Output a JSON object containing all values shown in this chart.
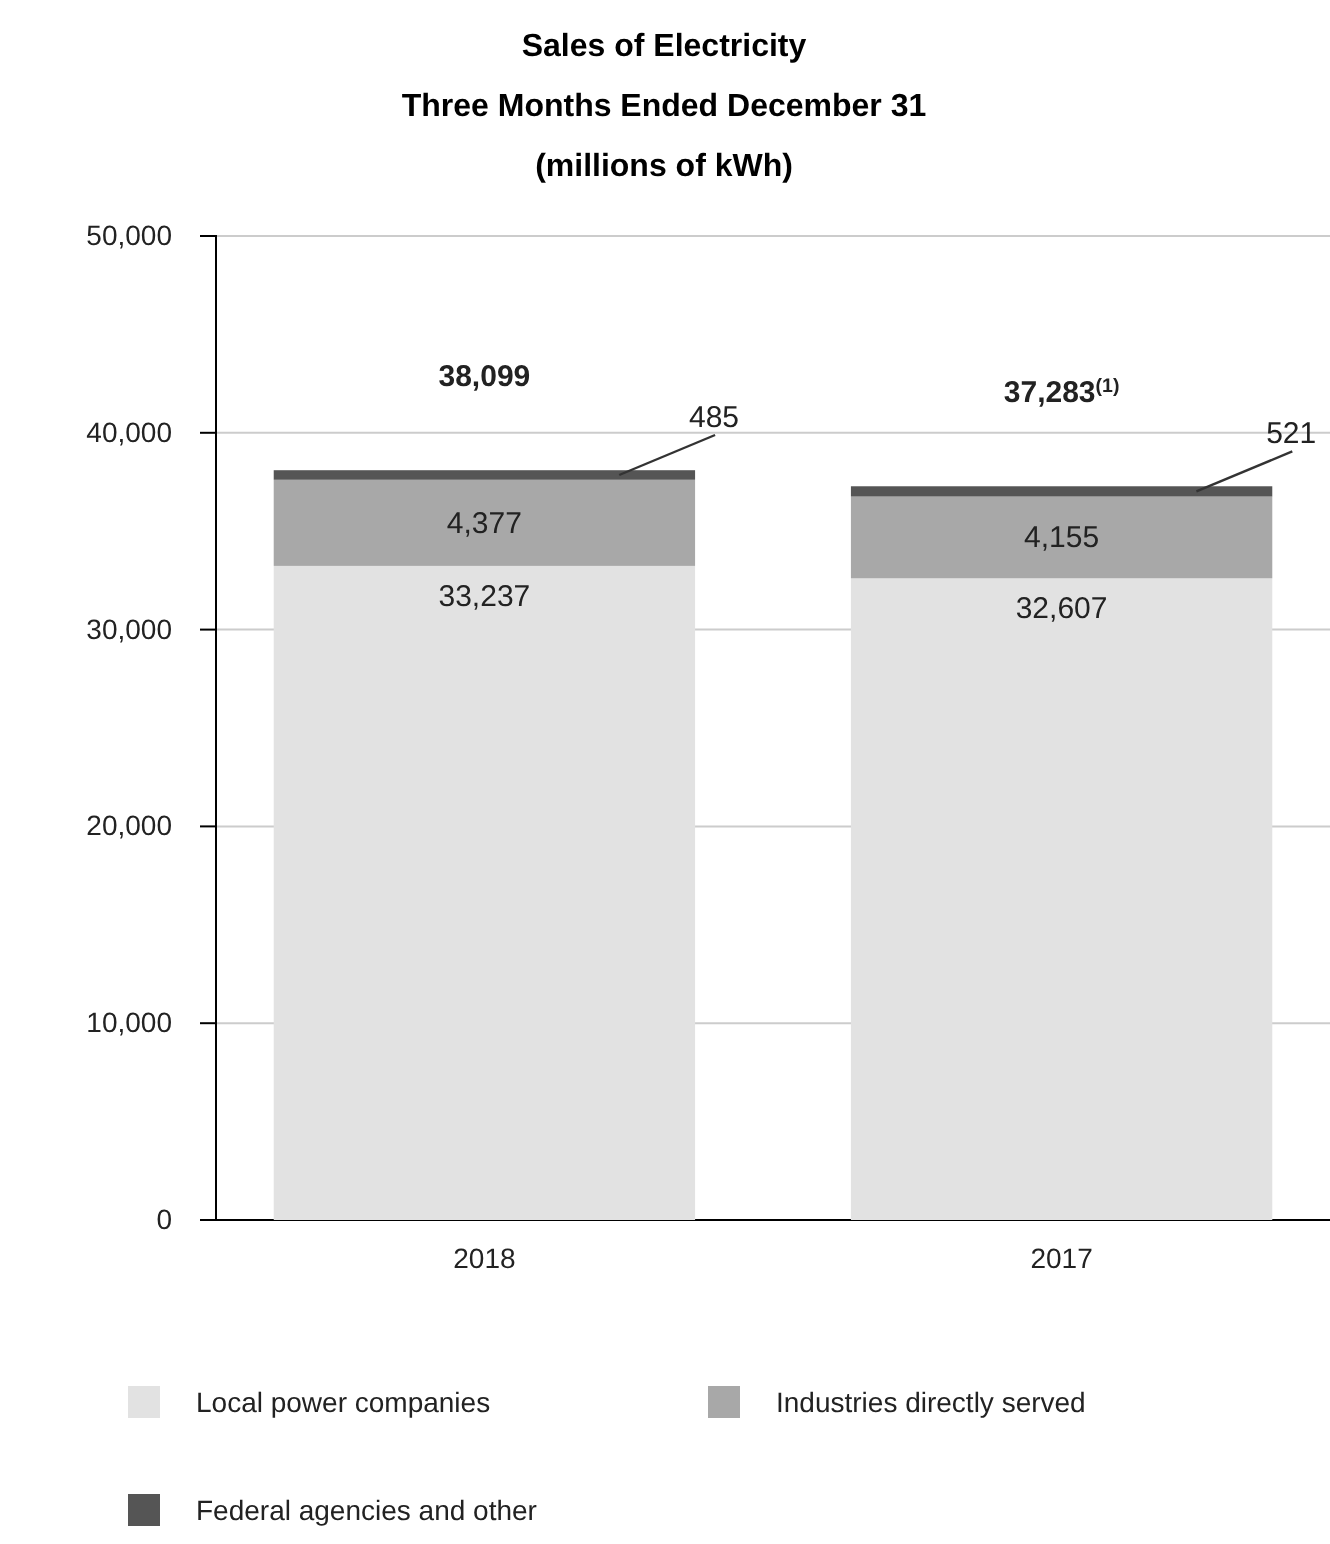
{
  "chart_data": {
    "type": "bar",
    "title": "Sales of Electricity",
    "subtitle": "Three Months Ended December 31\n(millions of kWh)",
    "categories": [
      "2018",
      "2017"
    ],
    "stacked": true,
    "series": [
      {
        "name": "Local power companies",
        "color": "#e2e2e2",
        "values": [
          33237,
          32607
        ],
        "value_labels": [
          "33,237",
          "32,607"
        ]
      },
      {
        "name": "Industries directly served",
        "color": "#a8a8a8",
        "values": [
          4377,
          4155
        ],
        "value_labels": [
          "4,377",
          "4,155"
        ]
      },
      {
        "name": "Federal agencies and other",
        "color": "#555555",
        "values": [
          485,
          521
        ],
        "value_labels": [
          "485",
          "521"
        ]
      }
    ],
    "totals": [
      "38,099",
      "37,283$^{(1)}$"
    ],
    "ylim": [
      0,
      50000
    ],
    "yticks": [
      {
        "value": 0,
        "label": "0"
      },
      {
        "value": 10000,
        "label": "10,000"
      },
      {
        "value": 20000,
        "label": "20,000"
      },
      {
        "value": 30000,
        "label": "30,000"
      },
      {
        "value": 40000,
        "label": "40,000"
      },
      {
        "value": 50000,
        "label": "50,000"
      }
    ],
    "grid": "y",
    "legend": "bottom"
  }
}
